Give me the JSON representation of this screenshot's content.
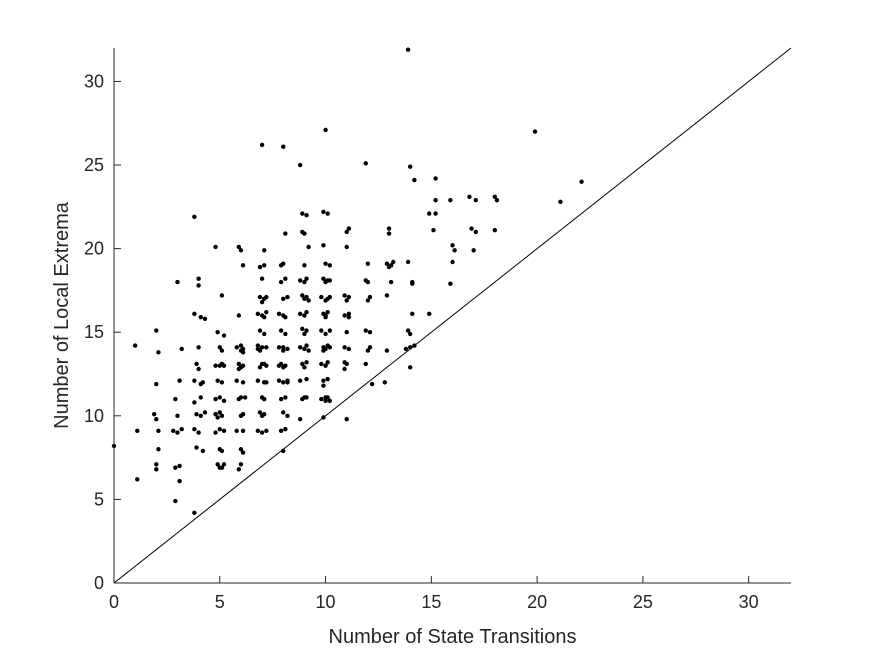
{
  "chart_data": {
    "type": "scatter",
    "title": "",
    "xlabel": "Number of State Transitions",
    "ylabel": "Number of Local Extrema",
    "xlim": [
      0,
      32
    ],
    "ylim": [
      0,
      32
    ],
    "xticks": [
      0,
      5,
      10,
      15,
      20,
      25,
      30
    ],
    "yticks": [
      0,
      5,
      10,
      15,
      20,
      25,
      30
    ],
    "grid": false,
    "reference_line": {
      "x": [
        0,
        32
      ],
      "y": [
        0,
        32
      ]
    },
    "colors": {
      "points": "#000000",
      "axes": "#262626",
      "line": "#000000"
    },
    "series": [
      {
        "points": [
          [
            0,
            8.2
          ],
          [
            1,
            14.2
          ],
          [
            1.1,
            9.1
          ],
          [
            1.1,
            6.2
          ],
          [
            2,
            15.1
          ],
          [
            2.1,
            13.8
          ],
          [
            2,
            11.9
          ],
          [
            1.9,
            10.1
          ],
          [
            2,
            9.8
          ],
          [
            2.1,
            9.1
          ],
          [
            2.1,
            8
          ],
          [
            2,
            7.1
          ],
          [
            2,
            6.8
          ],
          [
            3,
            18
          ],
          [
            3.2,
            14
          ],
          [
            3.1,
            12.1
          ],
          [
            2.9,
            11
          ],
          [
            3,
            10
          ],
          [
            3.2,
            9.2
          ],
          [
            3,
            9
          ],
          [
            2.8,
            9.1
          ],
          [
            3.1,
            7
          ],
          [
            2.9,
            6.9
          ],
          [
            3.1,
            6.1
          ],
          [
            2.9,
            4.9
          ],
          [
            3.8,
            21.9
          ],
          [
            4,
            18.2
          ],
          [
            4,
            17.8
          ],
          [
            3.8,
            16.1
          ],
          [
            4.1,
            15.9
          ],
          [
            4.3,
            15.8
          ],
          [
            4,
            14.1
          ],
          [
            3.9,
            13.1
          ],
          [
            4,
            12.8
          ],
          [
            3.8,
            12.1
          ],
          [
            4.1,
            11.9
          ],
          [
            4.1,
            11.1
          ],
          [
            3.8,
            10.8
          ],
          [
            3.9,
            10.1
          ],
          [
            4.1,
            10
          ],
          [
            3.8,
            9.2
          ],
          [
            4,
            9
          ],
          [
            3.9,
            8.1
          ],
          [
            4.2,
            7.9
          ],
          [
            3.8,
            4.2
          ],
          [
            4.3,
            10.2
          ],
          [
            4.2,
            12
          ],
          [
            4.8,
            20.1
          ],
          [
            5.1,
            17.2
          ],
          [
            4.9,
            15
          ],
          [
            5.2,
            14.8
          ],
          [
            5,
            14.1
          ],
          [
            5.1,
            13.9
          ],
          [
            4.8,
            13
          ],
          [
            5,
            13
          ],
          [
            5.2,
            13
          ],
          [
            4.9,
            12.1
          ],
          [
            5.1,
            12
          ],
          [
            5,
            11.1
          ],
          [
            4.8,
            11
          ],
          [
            5.2,
            10.9
          ],
          [
            5,
            10.2
          ],
          [
            4.9,
            9.9
          ],
          [
            5.1,
            10
          ],
          [
            5,
            9.2
          ],
          [
            4.8,
            9
          ],
          [
            5.2,
            9.1
          ],
          [
            5,
            8
          ],
          [
            5.1,
            7.9
          ],
          [
            4.9,
            7.1
          ],
          [
            5.1,
            6.9
          ],
          [
            5.2,
            7.1
          ],
          [
            5,
            6.9
          ],
          [
            5.1,
            13.1
          ],
          [
            4.8,
            10.1
          ],
          [
            5.9,
            20.1
          ],
          [
            6,
            19.9
          ],
          [
            6.1,
            19
          ],
          [
            5.9,
            16
          ],
          [
            6,
            14.2
          ],
          [
            5.8,
            14.1
          ],
          [
            6.1,
            14
          ],
          [
            6,
            13.9
          ],
          [
            5.9,
            13.1
          ],
          [
            6.1,
            13
          ],
          [
            6,
            12.9
          ],
          [
            5.8,
            12.1
          ],
          [
            6.1,
            12
          ],
          [
            6,
            11.1
          ],
          [
            5.9,
            11
          ],
          [
            6.1,
            10.1
          ],
          [
            6,
            10
          ],
          [
            5.8,
            9.1
          ],
          [
            6.1,
            9.1
          ],
          [
            6,
            8
          ],
          [
            6.1,
            7.8
          ],
          [
            6,
            7.1
          ],
          [
            5.9,
            6.8
          ],
          [
            6.1,
            13.8
          ],
          [
            5.9,
            12.8
          ],
          [
            6.2,
            11.1
          ],
          [
            7,
            26.2
          ],
          [
            7.1,
            19.9
          ],
          [
            6.9,
            18.9
          ],
          [
            7.1,
            19
          ],
          [
            7,
            18.2
          ],
          [
            6.9,
            17.1
          ],
          [
            7.1,
            17
          ],
          [
            7,
            16.8
          ],
          [
            7.2,
            17.1
          ],
          [
            6.8,
            16.1
          ],
          [
            7,
            16
          ],
          [
            7.1,
            15.9
          ],
          [
            6.9,
            15.1
          ],
          [
            7.1,
            14.9
          ],
          [
            7,
            14.1
          ],
          [
            6.8,
            14
          ],
          [
            7.2,
            14.1
          ],
          [
            6.9,
            13.9
          ],
          [
            7,
            13.1
          ],
          [
            7.2,
            13
          ],
          [
            6.9,
            12.9
          ],
          [
            7.1,
            12
          ],
          [
            6.8,
            12.1
          ],
          [
            7.2,
            12
          ],
          [
            7,
            11.1
          ],
          [
            7.1,
            11
          ],
          [
            6.9,
            10.2
          ],
          [
            7.1,
            10.1
          ],
          [
            7,
            10
          ],
          [
            6.8,
            9.1
          ],
          [
            7.2,
            9.1
          ],
          [
            7,
            9
          ],
          [
            7.2,
            16.2
          ],
          [
            6.8,
            14.2
          ],
          [
            7.1,
            13.1
          ],
          [
            8,
            26.1
          ],
          [
            8.1,
            20.9
          ],
          [
            7.9,
            19
          ],
          [
            8,
            19.1
          ],
          [
            8.1,
            18.2
          ],
          [
            7.9,
            18
          ],
          [
            8,
            17
          ],
          [
            8.2,
            17.1
          ],
          [
            7.8,
            16.1
          ],
          [
            8,
            16
          ],
          [
            8.1,
            15.9
          ],
          [
            7.9,
            15.1
          ],
          [
            8.1,
            14.9
          ],
          [
            8,
            14.1
          ],
          [
            7.8,
            14.1
          ],
          [
            8.2,
            14
          ],
          [
            8,
            13.9
          ],
          [
            7.9,
            13.1
          ],
          [
            8.1,
            13
          ],
          [
            8,
            12.9
          ],
          [
            7.8,
            12.1
          ],
          [
            8,
            12
          ],
          [
            8.2,
            12.1
          ],
          [
            8.1,
            11.1
          ],
          [
            7.9,
            11
          ],
          [
            8,
            10.2
          ],
          [
            8.2,
            10
          ],
          [
            7.9,
            9.1
          ],
          [
            8.1,
            9.2
          ],
          [
            8,
            7.9
          ],
          [
            8.2,
            12
          ],
          [
            7.8,
            13
          ],
          [
            8.8,
            25
          ],
          [
            8.9,
            22.1
          ],
          [
            9.1,
            22
          ],
          [
            8.9,
            21
          ],
          [
            9,
            20.9
          ],
          [
            9.2,
            20.1
          ],
          [
            9,
            19
          ],
          [
            8.8,
            18.1
          ],
          [
            9.1,
            18.2
          ],
          [
            9,
            18
          ],
          [
            8.9,
            17.2
          ],
          [
            9.1,
            17.1
          ],
          [
            9,
            17
          ],
          [
            8.8,
            16.1
          ],
          [
            9.1,
            16.2
          ],
          [
            9,
            16
          ],
          [
            8.9,
            15.2
          ],
          [
            9.1,
            15.1
          ],
          [
            9,
            14.9
          ],
          [
            8.8,
            14.1
          ],
          [
            9.1,
            14.2
          ],
          [
            9,
            14
          ],
          [
            8.9,
            13.1
          ],
          [
            9.1,
            13.2
          ],
          [
            9,
            12.9
          ],
          [
            8.8,
            12.1
          ],
          [
            9.1,
            12.2
          ],
          [
            9,
            11.1
          ],
          [
            8.9,
            11
          ],
          [
            9.1,
            11.1
          ],
          [
            8.8,
            9.8
          ],
          [
            9.2,
            16.9
          ],
          [
            9.2,
            13.9
          ],
          [
            9.9,
            22.2
          ],
          [
            10.1,
            22.1
          ],
          [
            9.9,
            20.2
          ],
          [
            10,
            19.1
          ],
          [
            10.2,
            19
          ],
          [
            9.9,
            18.2
          ],
          [
            10.1,
            18.1
          ],
          [
            10,
            18
          ],
          [
            10.2,
            18.1
          ],
          [
            9.8,
            17.1
          ],
          [
            10.1,
            17
          ],
          [
            10,
            16.9
          ],
          [
            9.9,
            16.1
          ],
          [
            10.1,
            16.2
          ],
          [
            10,
            16
          ],
          [
            9.8,
            15.1
          ],
          [
            10.2,
            15.1
          ],
          [
            10,
            14.9
          ],
          [
            9.9,
            14.1
          ],
          [
            10.1,
            14.2
          ],
          [
            10,
            14
          ],
          [
            10.2,
            14.1
          ],
          [
            9.8,
            13.1
          ],
          [
            10.1,
            13.2
          ],
          [
            10,
            13
          ],
          [
            9.9,
            12.1
          ],
          [
            10.1,
            12.2
          ],
          [
            10,
            11.1
          ],
          [
            9.8,
            11
          ],
          [
            10.1,
            11.1
          ],
          [
            9.9,
            11.8
          ],
          [
            10,
            10.9
          ],
          [
            10.2,
            10.9
          ],
          [
            9.9,
            9.9
          ],
          [
            10,
            27.1
          ],
          [
            10.2,
            17.1
          ],
          [
            10,
            15.9
          ],
          [
            9.9,
            13.9
          ],
          [
            10.9,
            17.2
          ],
          [
            11,
            16.9
          ],
          [
            11.1,
            17.1
          ],
          [
            10.9,
            16
          ],
          [
            11.1,
            16.1
          ],
          [
            11,
            15
          ],
          [
            10.9,
            14.1
          ],
          [
            11.1,
            14
          ],
          [
            11,
            13.1
          ],
          [
            10.9,
            13.2
          ],
          [
            11.1,
            21.2
          ],
          [
            11,
            21
          ],
          [
            11,
            20.1
          ],
          [
            11,
            9.8
          ],
          [
            11.1,
            15.9
          ],
          [
            10.9,
            12.8
          ],
          [
            11.9,
            25.1
          ],
          [
            12,
            19.1
          ],
          [
            11.9,
            18.1
          ],
          [
            12.1,
            17.1
          ],
          [
            12,
            16.9
          ],
          [
            11.9,
            15.1
          ],
          [
            12.1,
            14.1
          ],
          [
            12,
            13.9
          ],
          [
            12.1,
            15
          ],
          [
            11.9,
            13.1
          ],
          [
            12.2,
            11.9
          ],
          [
            12,
            18
          ],
          [
            13,
            21.2
          ],
          [
            13,
            20.9
          ],
          [
            12.9,
            19.1
          ],
          [
            13.1,
            19
          ],
          [
            13,
            18.9
          ],
          [
            13.2,
            19.2
          ],
          [
            12.9,
            17.2
          ],
          [
            13.1,
            18
          ],
          [
            12.9,
            13.9
          ],
          [
            12.8,
            12
          ],
          [
            13.9,
            31.9
          ],
          [
            14,
            24.9
          ],
          [
            14.2,
            24.1
          ],
          [
            13.9,
            19.2
          ],
          [
            14.1,
            18
          ],
          [
            14.1,
            17.9
          ],
          [
            14.1,
            16.1
          ],
          [
            13.9,
            15.1
          ],
          [
            14,
            14.9
          ],
          [
            14,
            14.1
          ],
          [
            14.2,
            14.2
          ],
          [
            13.8,
            14
          ],
          [
            14,
            12.9
          ],
          [
            14.9,
            22.1
          ],
          [
            15.2,
            24.2
          ],
          [
            15.2,
            22.1
          ],
          [
            15.2,
            22.9
          ],
          [
            15.1,
            21.1
          ],
          [
            14.9,
            16.1
          ],
          [
            15.9,
            22.9
          ],
          [
            16,
            20.2
          ],
          [
            16.1,
            19.9
          ],
          [
            16,
            19.2
          ],
          [
            15.9,
            17.9
          ],
          [
            16.8,
            23.1
          ],
          [
            17.1,
            22.9
          ],
          [
            16.9,
            21.2
          ],
          [
            17.1,
            21
          ],
          [
            17,
            19.9
          ],
          [
            18,
            23.1
          ],
          [
            18.1,
            22.9
          ],
          [
            18,
            21.1
          ],
          [
            19.9,
            27
          ],
          [
            21.1,
            22.8
          ],
          [
            22.1,
            24
          ]
        ]
      }
    ]
  }
}
